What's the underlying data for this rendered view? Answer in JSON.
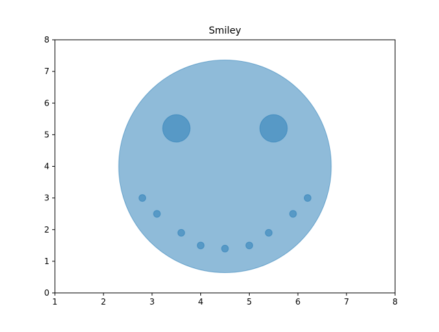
{
  "chart_data": {
    "type": "scatter",
    "title": "Smiley",
    "xlabel": "",
    "ylabel": "",
    "xlim": [
      1,
      8
    ],
    "ylim": [
      0,
      8
    ],
    "grid": false,
    "xticks": [
      "1",
      "2",
      "3",
      "4",
      "5",
      "6",
      "7",
      "8"
    ],
    "yticks": [
      "0",
      "1",
      "2",
      "3",
      "4",
      "5",
      "6",
      "7",
      "8"
    ],
    "series": [
      {
        "name": "face",
        "points": [
          {
            "x": 4.5,
            "y": 4.0,
            "radius_px": 155
          }
        ],
        "color": "#1f77b4",
        "alpha": 0.5
      },
      {
        "name": "eyes",
        "points": [
          {
            "x": 3.5,
            "y": 5.2,
            "radius_px": 20
          },
          {
            "x": 5.5,
            "y": 5.2,
            "radius_px": 20
          }
        ],
        "color": "#1f77b4",
        "alpha": 0.5
      },
      {
        "name": "mouth",
        "points": [
          {
            "x": 2.8,
            "y": 3.0
          },
          {
            "x": 3.1,
            "y": 2.5
          },
          {
            "x": 3.6,
            "y": 1.9
          },
          {
            "x": 4.0,
            "y": 1.5
          },
          {
            "x": 4.5,
            "y": 1.4
          },
          {
            "x": 5.0,
            "y": 1.5
          },
          {
            "x": 5.4,
            "y": 1.9
          },
          {
            "x": 5.9,
            "y": 2.5
          },
          {
            "x": 6.2,
            "y": 3.0
          }
        ],
        "radius_px": 5,
        "color": "#1f77b4",
        "alpha": 0.5
      }
    ]
  }
}
